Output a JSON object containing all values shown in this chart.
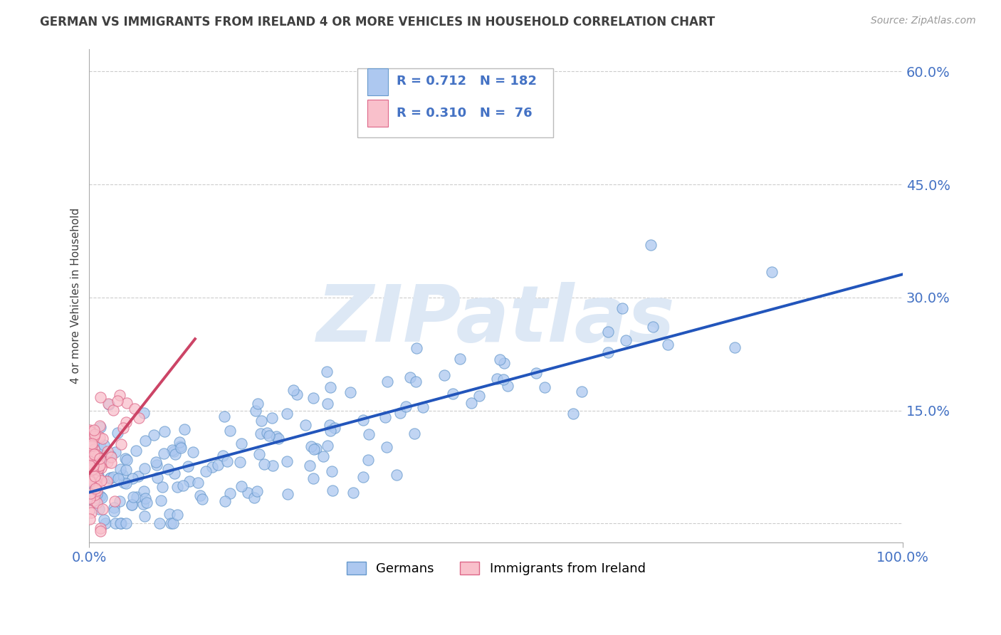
{
  "title": "GERMAN VS IMMIGRANTS FROM IRELAND 4 OR MORE VEHICLES IN HOUSEHOLD CORRELATION CHART",
  "source": "Source: ZipAtlas.com",
  "ylabel": "4 or more Vehicles in Household",
  "ytick_labels": [
    "",
    "15.0%",
    "30.0%",
    "45.0%",
    "60.0%"
  ],
  "ytick_vals": [
    0.0,
    0.15,
    0.3,
    0.45,
    0.6
  ],
  "legend_color1": "#adc8f0",
  "legend_color2": "#f9c0cb",
  "scatter_color1": "#adc8f0",
  "scatter_color2": "#f9c0cb",
  "scatter_edge1": "#6699cc",
  "scatter_edge2": "#dd6688",
  "line_color1": "#2255bb",
  "line_color2": "#cc4466",
  "watermark": "ZIPatlas",
  "watermark_color": "#dde8f5",
  "background_color": "#ffffff",
  "grid_color": "#cccccc",
  "title_color": "#404040",
  "source_color": "#999999",
  "axis_label_color": "#4472c4",
  "R1": 0.712,
  "N1": 182,
  "R2": 0.31,
  "N2": 76,
  "xmin": 0.0,
  "xmax": 1.0,
  "ymin": -0.025,
  "ymax": 0.63
}
